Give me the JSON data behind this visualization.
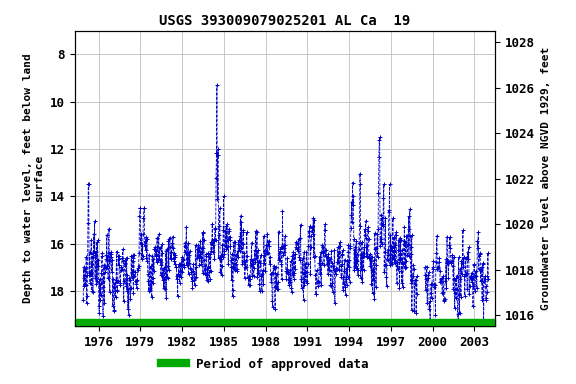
{
  "title": "USGS 393009079025201 AL Ca  19",
  "ylabel_left": "Depth to water level, feet below land\nsurface",
  "ylabel_right": "Groundwater level above NGVD 1929, feet",
  "xlim": [
    1974.3,
    2004.5
  ],
  "ylim_left": [
    19.5,
    7.0
  ],
  "ylim_right": [
    1015.5,
    1028.5
  ],
  "left_yticks": [
    8,
    10,
    12,
    14,
    16,
    18
  ],
  "right_yticks": [
    1016,
    1018,
    1020,
    1022,
    1024,
    1026,
    1028
  ],
  "xticks": [
    1976,
    1979,
    1982,
    1985,
    1988,
    1991,
    1994,
    1997,
    2000,
    2003
  ],
  "data_color": "#0000CC",
  "grid_color": "#C8C8C8",
  "bg_color": "#FFFFFF",
  "legend_label": "Period of approved data",
  "legend_color": "#00AA00",
  "title_fontsize": 10,
  "axis_label_fontsize": 8,
  "tick_fontsize": 9
}
